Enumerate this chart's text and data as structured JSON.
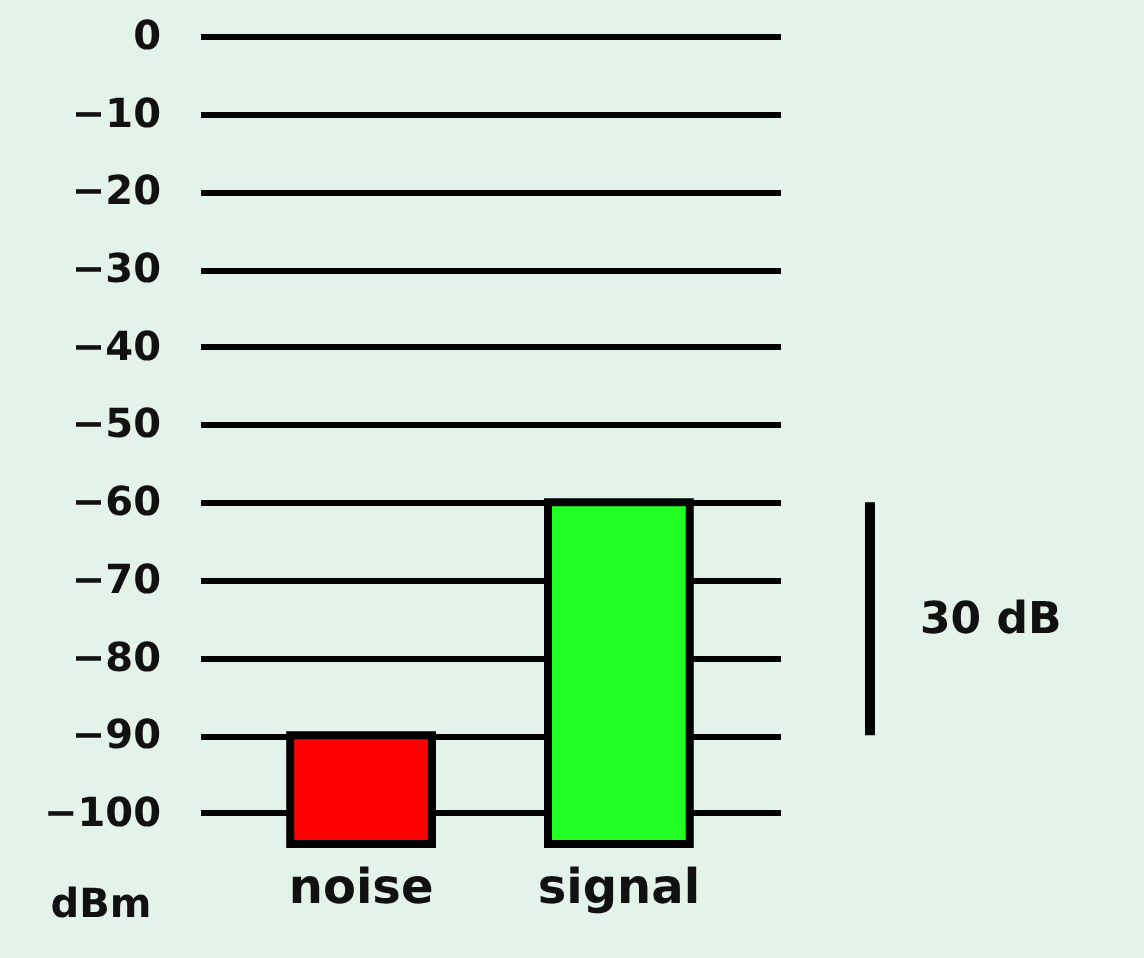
{
  "chart_data": {
    "type": "bar",
    "categories": [
      "noise",
      "signal"
    ],
    "base": [
      -104,
      -104
    ],
    "values": [
      14,
      44
    ],
    "colors": [
      "#ff0000",
      "#22ff22"
    ],
    "ylabel": "dBm",
    "ylim": [
      -104,
      0
    ],
    "yticks": [
      0,
      -10,
      -20,
      -30,
      -40,
      -50,
      -60,
      -70,
      -80,
      -90,
      -100
    ],
    "grid": "y",
    "annotations": [
      "30 dB"
    ]
  }
}
